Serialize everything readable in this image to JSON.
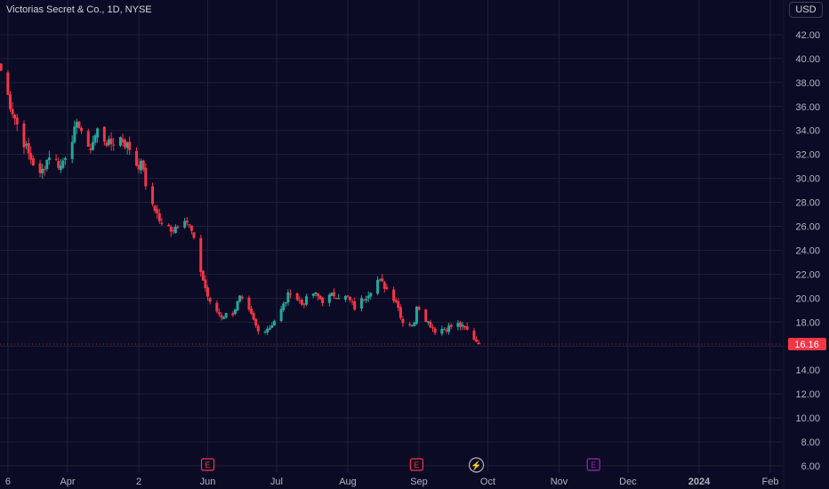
{
  "header": {
    "symbol_title": "Victorias Secret & Co., 1D, NYSE",
    "currency": "USD"
  },
  "price_badge": {
    "value": "16.16",
    "color": "#f23645"
  },
  "colors": {
    "background": "#0b0b25",
    "grid": "#1f2235",
    "up": "#26a69a",
    "down": "#f23645",
    "axis_text": "#b2b5be",
    "earnings": "#f23645",
    "dividend": "#9c27b0",
    "split": "#b2b5be"
  },
  "chart_data": {
    "type": "candlestick",
    "title": "Victorias Secret & Co., 1D, NYSE",
    "ylim": [
      5.4,
      44.0
    ],
    "y_ticks": [
      "42.00",
      "40.00",
      "38.00",
      "36.00",
      "34.00",
      "32.00",
      "30.00",
      "28.00",
      "26.00",
      "24.00",
      "22.00",
      "20.00",
      "18.00",
      "16.00",
      "14.00",
      "12.00",
      "10.00",
      "8.00",
      "6.00"
    ],
    "x_labels": [
      {
        "label": "6",
        "date": "2023-03-06"
      },
      {
        "label": "Apr",
        "date": "2023-04-01"
      },
      {
        "label": "2",
        "date": "2023-05-02"
      },
      {
        "label": "Jun",
        "date": "2023-06-01"
      },
      {
        "label": "Jul",
        "date": "2023-07-01"
      },
      {
        "label": "Aug",
        "date": "2023-08-01"
      },
      {
        "label": "Sep",
        "date": "2023-09-01"
      },
      {
        "label": "Oct",
        "date": "2023-10-01"
      },
      {
        "label": "Nov",
        "date": "2023-11-01"
      },
      {
        "label": "Dec",
        "date": "2023-12-01"
      },
      {
        "label": "2024",
        "date": "2024-01-01"
      },
      {
        "label": "Feb",
        "date": "2024-02-01"
      }
    ],
    "last_price": 16.16,
    "anchors": [
      [
        "2023-03-03",
        39.0
      ],
      [
        "2023-03-07",
        36.2
      ],
      [
        "2023-03-10",
        34.5
      ],
      [
        "2023-03-15",
        32.0
      ],
      [
        "2023-03-20",
        30.2
      ],
      [
        "2023-03-24",
        32.0
      ],
      [
        "2023-03-29",
        31.0
      ],
      [
        "2023-04-03",
        33.5
      ],
      [
        "2023-04-06",
        34.6
      ],
      [
        "2023-04-10",
        32.2
      ],
      [
        "2023-04-14",
        34.0
      ],
      [
        "2023-04-19",
        32.8
      ],
      [
        "2023-04-24",
        33.4
      ],
      [
        "2023-04-28",
        32.5
      ],
      [
        "2023-05-01",
        31.2
      ],
      [
        "2023-05-04",
        31.0
      ],
      [
        "2023-05-05",
        29.0
      ],
      [
        "2023-05-09",
        27.5
      ],
      [
        "2023-05-12",
        26.0
      ],
      [
        "2023-05-17",
        25.8
      ],
      [
        "2023-05-22",
        26.8
      ],
      [
        "2023-05-25",
        25.5
      ],
      [
        "2023-05-30",
        21.5
      ],
      [
        "2023-06-02",
        19.5
      ],
      [
        "2023-06-07",
        18.5
      ],
      [
        "2023-06-12",
        18.8
      ],
      [
        "2023-06-15",
        20.0
      ],
      [
        "2023-06-20",
        18.5
      ],
      [
        "2023-06-23",
        17.2
      ],
      [
        "2023-06-28",
        17.6
      ],
      [
        "2023-07-03",
        19.0
      ],
      [
        "2023-07-07",
        20.6
      ],
      [
        "2023-07-12",
        19.5
      ],
      [
        "2023-07-17",
        20.4
      ],
      [
        "2023-07-21",
        19.8
      ],
      [
        "2023-07-26",
        20.3
      ],
      [
        "2023-08-01",
        20.0
      ],
      [
        "2023-08-04",
        19.2
      ],
      [
        "2023-08-09",
        20.2
      ],
      [
        "2023-08-14",
        21.5
      ],
      [
        "2023-08-17",
        21.0
      ],
      [
        "2023-08-22",
        19.8
      ],
      [
        "2023-08-25",
        18.0
      ],
      [
        "2023-08-30",
        17.8
      ],
      [
        "2023-08-31",
        19.5
      ],
      [
        "2023-09-05",
        18.0
      ],
      [
        "2023-09-08",
        17.3
      ],
      [
        "2023-09-13",
        17.5
      ],
      [
        "2023-09-18",
        17.8
      ],
      [
        "2023-09-22",
        17.3
      ],
      [
        "2023-09-27",
        16.2
      ]
    ],
    "events": [
      {
        "type": "earnings",
        "label": "E",
        "date": "2023-06-01"
      },
      {
        "type": "earnings",
        "label": "E",
        "date": "2023-08-31"
      },
      {
        "type": "split",
        "label": "⚡",
        "date": "2023-09-26"
      },
      {
        "type": "dividend",
        "label": "E",
        "date": "2023-11-16"
      }
    ]
  }
}
